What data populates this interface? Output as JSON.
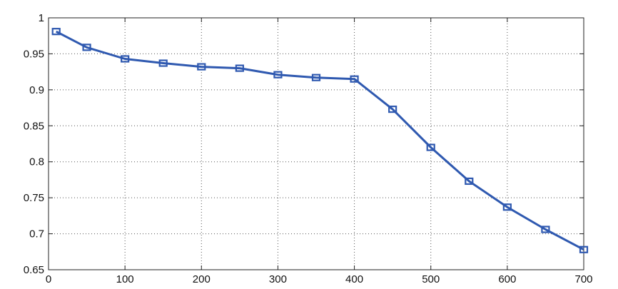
{
  "chart_data": {
    "type": "line",
    "title": "",
    "xlabel": "",
    "ylabel": "",
    "xlim": [
      0,
      700
    ],
    "ylim": [
      0.65,
      1.0
    ],
    "xticks": [
      0,
      100,
      200,
      300,
      400,
      500,
      600,
      700
    ],
    "yticks": [
      0.65,
      0.7,
      0.75,
      0.8,
      0.85,
      0.9,
      0.95,
      1.0
    ],
    "xtick_labels": [
      "0",
      "100",
      "200",
      "300",
      "400",
      "500",
      "600",
      "700"
    ],
    "ytick_labels": [
      "0.65",
      "0.7",
      "0.75",
      "0.8",
      "0.85",
      "0.9",
      "0.95",
      "1"
    ],
    "grid": true,
    "legend": "none",
    "series": [
      {
        "color": "#2f59b0",
        "marker": "square",
        "x": [
          10,
          50,
          100,
          150,
          200,
          250,
          300,
          350,
          400,
          450,
          500,
          550,
          600,
          650,
          700
        ],
        "y": [
          0.981,
          0.959,
          0.943,
          0.937,
          0.932,
          0.93,
          0.921,
          0.917,
          0.915,
          0.873,
          0.82,
          0.773,
          0.737,
          0.706,
          0.678
        ]
      }
    ]
  }
}
